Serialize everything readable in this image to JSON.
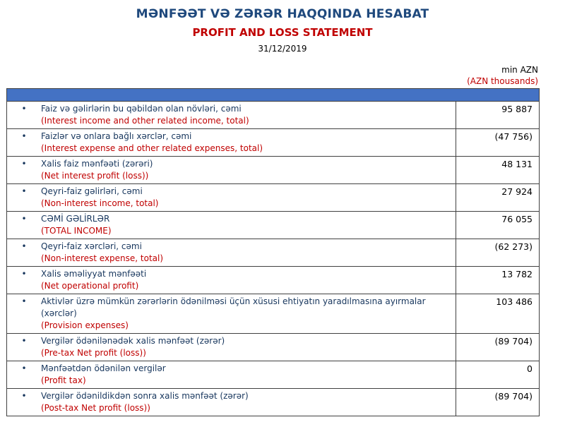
{
  "header": {
    "title_az": "MƏNFƏƏT VƏ ZƏRƏR HAQQINDA HESABAT",
    "title_en": "PROFIT AND LOSS STATEMENT",
    "date": "31/12/2019",
    "unit_az": "min AZN",
    "unit_en": "(AZN thousands)"
  },
  "colors": {
    "title_blue": "#1F497D",
    "accent_red": "#C00000",
    "header_band_blue": "#4472C4",
    "row_text_navy": "#17365D",
    "border": "#404040"
  },
  "table": {
    "bullet": "•",
    "rows": [
      {
        "az": "Faiz və gəlirlərin bu qəbildən olan növləri, cəmi",
        "en": "(Interest income and other related income, total)",
        "value": "95 887"
      },
      {
        "az": "Faizlər və onlara bağlı xərclər, cəmi",
        "en": "(Interest expense and other related expenses, total)",
        "value": "(47 756)"
      },
      {
        "az": "Xalis faiz mənfəəti (zərəri)",
        "en": "(Net interest profit (loss))",
        "value": "48 131"
      },
      {
        "az": "Qeyri-faiz gəlirləri, cəmi",
        "en": "(Non-interest income, total)",
        "value": "27 924"
      },
      {
        "az": "CƏMİ GƏLİRLƏR",
        "en": "(TOTAL INCOME)",
        "value": "76 055"
      },
      {
        "az": "Qeyri-faiz xərcləri, cəmi",
        "en": "(Non-interest expense, total)",
        "value": "(62 273)"
      },
      {
        "az": "Xalis əməliyyat mənfəəti",
        "en": "(Net operational profit)",
        "value": "13 782"
      },
      {
        "az": "Aktivlər üzrə mümkün zərərlərin ödənilməsi üçün xüsusi ehtiyatın yaradılmasına ayırmalar (xərclər)",
        "en": "(Provision expenses)",
        "value": "103 486"
      },
      {
        "az": "Vergilər ödənilənədək xalis mənfəət (zərər)",
        "en": "(Pre-tax Net profit (loss))",
        "value": "(89 704)"
      },
      {
        "az": "Mənfəətdən ödənilən vergilər",
        "en": "(Profit tax)",
        "value": "0"
      },
      {
        "az": "Vergilər ödənildikdən sonra xalis mənfəət (zərər)",
        "en": "(Post-tax Net profit (loss))",
        "value": "(89 704)"
      }
    ]
  }
}
